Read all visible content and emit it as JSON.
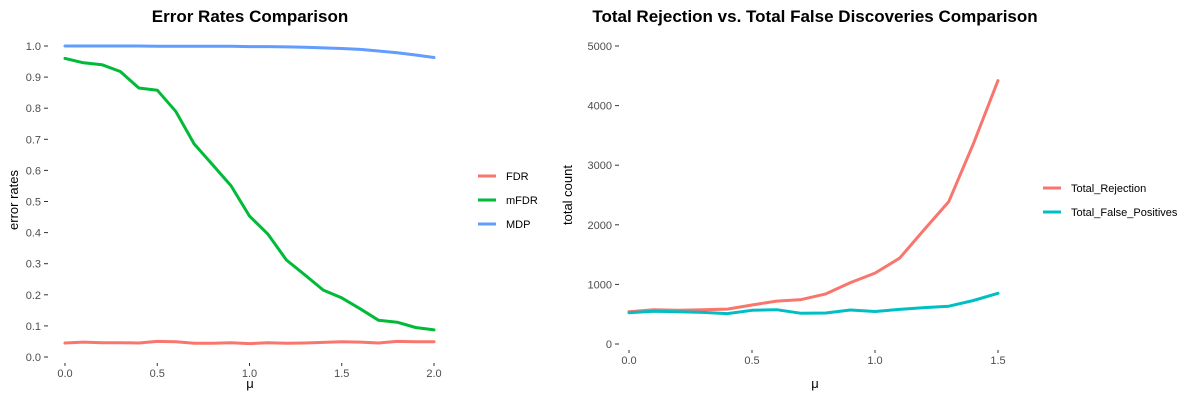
{
  "chart_data": [
    {
      "type": "line",
      "title": "Error Rates Comparison",
      "xlabel": "μ",
      "ylabel": "error rates",
      "xlim": [
        0,
        2
      ],
      "ylim": [
        0,
        1
      ],
      "grid": false,
      "legend_position": "right",
      "x_ticks": [
        0.0,
        0.5,
        1.0,
        1.5,
        2.0
      ],
      "x_tick_labels": [
        "0.0",
        "0.5",
        "1.0",
        "1.5",
        "2.0"
      ],
      "y_ticks": [
        0.0,
        0.1,
        0.2,
        0.3,
        0.4,
        0.5,
        0.6,
        0.7,
        0.8,
        0.9,
        1.0
      ],
      "y_tick_labels": [
        "0.0",
        "0.1",
        "0.2",
        "0.3",
        "0.4",
        "0.5",
        "0.6",
        "0.7",
        "0.8",
        "0.9",
        "1.0"
      ],
      "x": [
        0.0,
        0.1,
        0.2,
        0.3,
        0.4,
        0.5,
        0.6,
        0.7,
        0.8,
        0.9,
        1.0,
        1.1,
        1.2,
        1.3,
        1.4,
        1.5,
        1.6,
        1.7,
        1.8,
        1.9,
        2.0
      ],
      "series": [
        {
          "name": "FDR",
          "color": "#F8766D",
          "values": [
            0.045,
            0.048,
            0.046,
            0.046,
            0.045,
            0.05,
            0.049,
            0.044,
            0.044,
            0.046,
            0.043,
            0.046,
            0.044,
            0.045,
            0.047,
            0.049,
            0.048,
            0.045,
            0.05,
            0.049,
            0.049
          ]
        },
        {
          "name": "mFDR",
          "color": "#00BA38",
          "values": [
            0.96,
            0.946,
            0.94,
            0.918,
            0.865,
            0.858,
            0.79,
            0.685,
            0.618,
            0.55,
            0.453,
            0.395,
            0.312,
            0.264,
            0.215,
            0.19,
            0.155,
            0.118,
            0.112,
            0.095,
            0.087
          ]
        },
        {
          "name": "MDP",
          "color": "#619CFF",
          "values": [
            1.0,
            1.0,
            1.0,
            1.0,
            1.0,
            0.999,
            0.999,
            0.999,
            0.999,
            0.999,
            0.998,
            0.998,
            0.997,
            0.996,
            0.994,
            0.992,
            0.989,
            0.984,
            0.978,
            0.971,
            0.963
          ]
        }
      ]
    },
    {
      "type": "line",
      "title": "Total Rejection vs. Total False Discoveries Comparison",
      "xlabel": "μ",
      "ylabel": "total count",
      "xlim": [
        0,
        1.5
      ],
      "ylim": [
        0,
        5000
      ],
      "grid": false,
      "legend_position": "right",
      "x_ticks": [
        0.0,
        0.5,
        1.0,
        1.5
      ],
      "x_tick_labels": [
        "0.0",
        "0.5",
        "1.0",
        "1.5"
      ],
      "y_ticks": [
        0,
        1000,
        2000,
        3000,
        4000,
        5000
      ],
      "y_tick_labels": [
        "0",
        "1000",
        "2000",
        "3000",
        "4000",
        "5000"
      ],
      "x": [
        0.0,
        0.1,
        0.2,
        0.3,
        0.4,
        0.5,
        0.6,
        0.7,
        0.8,
        0.9,
        1.0,
        1.1,
        1.2,
        1.3,
        1.4,
        1.5
      ],
      "series": [
        {
          "name": "Total_Rejection",
          "color": "#F8766D",
          "values": [
            540,
            575,
            565,
            575,
            585,
            655,
            720,
            745,
            840,
            1030,
            1190,
            1440,
            1920,
            2390,
            3360,
            4420
          ]
        },
        {
          "name": "Total_False_Positives",
          "color": "#00BFC4",
          "values": [
            525,
            550,
            540,
            530,
            510,
            565,
            575,
            515,
            520,
            570,
            545,
            580,
            610,
            635,
            730,
            850
          ]
        }
      ]
    }
  ]
}
